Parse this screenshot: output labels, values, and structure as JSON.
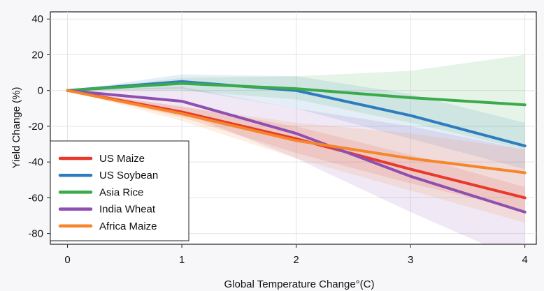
{
  "chart_data": {
    "type": "line",
    "xlabel": "Global Temperature Change°(C)",
    "ylabel": "Yield Change (%)",
    "x": [
      0,
      1,
      2,
      3,
      4
    ],
    "xlim": [
      -0.15,
      4.1
    ],
    "ylim": [
      -86,
      44
    ],
    "xticks": [
      "0",
      "1",
      "2",
      "3",
      "4"
    ],
    "yticks": [
      "40",
      "20",
      "0",
      "-20",
      "-40",
      "-60",
      "-80"
    ],
    "grid": true,
    "legend_position": "bottom-left",
    "series": [
      {
        "name": "US Maize",
        "color": "#e8392c",
        "values": [
          0,
          -12,
          -27,
          -44,
          -60
        ],
        "lower": [
          0,
          -15,
          -35,
          -52,
          -67
        ],
        "upper": [
          0,
          -9,
          -20,
          -36,
          -54
        ]
      },
      {
        "name": "US Soybean",
        "color": "#2e7cc0",
        "values": [
          0,
          5,
          0,
          -14,
          -31
        ],
        "lower": [
          0,
          1,
          -10,
          -27,
          -44
        ],
        "upper": [
          0,
          9,
          8,
          -2,
          -18
        ]
      },
      {
        "name": "Asia Rice",
        "color": "#3aaa4a",
        "values": [
          0,
          4,
          1,
          -4,
          -8
        ],
        "lower": [
          0,
          0,
          -5,
          -18,
          -33
        ],
        "upper": [
          0,
          7,
          8,
          11,
          20
        ]
      },
      {
        "name": "India Wheat",
        "color": "#8e4fb0",
        "values": [
          0,
          -6,
          -24,
          -48,
          -68
        ],
        "lower": [
          0,
          -12,
          -38,
          -68,
          -96
        ],
        "upper": [
          0,
          2,
          -10,
          -20,
          -33
        ]
      },
      {
        "name": "Africa Maize",
        "color": "#f5862a",
        "values": [
          0,
          -13,
          -28,
          -38,
          -46
        ],
        "lower": [
          0,
          -17,
          -38,
          -56,
          -74
        ],
        "upper": [
          0,
          -9,
          -18,
          -24,
          -33
        ]
      }
    ]
  }
}
